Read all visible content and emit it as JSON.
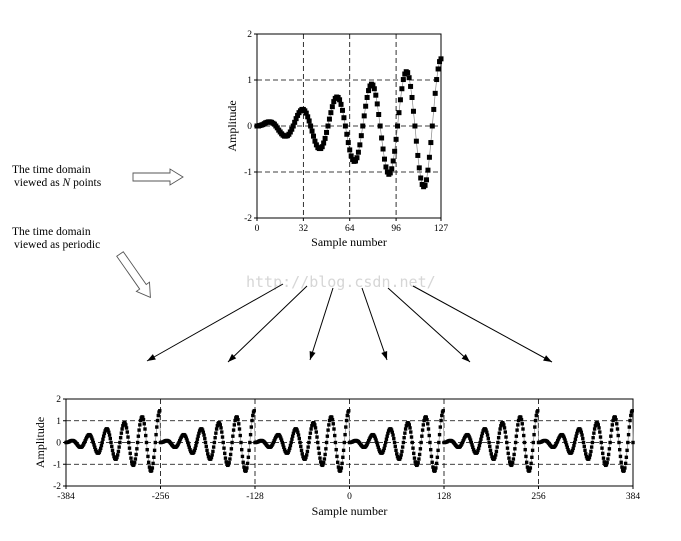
{
  "annotations": {
    "n_points_line1": "The time domain",
    "n_points_line2_prefix": "viewed as ",
    "n_points_line2_var": "N",
    "n_points_line2_suffix": " points",
    "periodic_line1": "The time domain",
    "periodic_line2": "viewed as periodic"
  },
  "watermark": "http://blog.csdn.net/",
  "chart_data": [
    {
      "type": "scatter",
      "xlabel": "Sample number",
      "ylabel": "Amplitude",
      "xlim": [
        0,
        127
      ],
      "ylim": [
        -2,
        2
      ],
      "xticks": [
        "0",
        "32",
        "64",
        "96",
        "127"
      ],
      "yticks": [
        "2",
        "1",
        "0",
        "-1",
        "-2"
      ],
      "grid": "dashed",
      "marker": "square",
      "color": "#000000",
      "x_start": 0,
      "values": [
        0,
        0,
        0.01,
        0.02,
        0.03,
        0.05,
        0.07,
        0.08,
        0.09,
        0.09,
        0.08,
        0.06,
        0.04,
        0,
        -0.04,
        -0.09,
        -0.13,
        -0.17,
        -0.2,
        -0.22,
        -0.22,
        -0.21,
        -0.18,
        -0.13,
        -0.07,
        0,
        0.08,
        0.16,
        0.23,
        0.29,
        0.33,
        0.36,
        0.36,
        0.33,
        0.28,
        0.2,
        0.11,
        0,
        -0.11,
        -0.22,
        -0.33,
        -0.41,
        -0.47,
        -0.49,
        -0.49,
        -0.45,
        -0.37,
        -0.27,
        -0.14,
        0,
        0.15,
        0.29,
        0.42,
        0.53,
        0.6,
        0.63,
        0.62,
        0.57,
        0.47,
        0.34,
        0.18,
        0,
        -0.18,
        -0.36,
        -0.52,
        -0.65,
        -0.73,
        -0.77,
        -0.76,
        -0.69,
        -0.57,
        -0.41,
        -0.21,
        0,
        0.22,
        0.43,
        0.62,
        0.77,
        0.87,
        0.91,
        0.89,
        0.81,
        0.67,
        0.48,
        0.25,
        0,
        -0.26,
        -0.5,
        -0.72,
        -0.89,
        -1.0,
        -1.05,
        -1.02,
        -0.93,
        -0.76,
        -0.55,
        -0.29,
        0,
        0.29,
        0.57,
        0.81,
        1.01,
        1.13,
        1.18,
        1.16,
        1.05,
        0.86,
        0.62,
        0.32,
        0,
        -0.33,
        -0.64,
        -0.91,
        -1.13,
        -1.27,
        -1.32,
        -1.29,
        -1.17,
        -0.96,
        -0.68,
        -0.36,
        0,
        0.36,
        0.71,
        1.01,
        1.24,
        1.4,
        1.46
      ]
    },
    {
      "type": "scatter",
      "xlabel": "Sample number",
      "ylabel": "Amplitude",
      "xlim": [
        -384,
        384
      ],
      "ylim": [
        -2,
        2
      ],
      "xticks": [
        "-384",
        "-256",
        "-128",
        "0",
        "128",
        "256",
        "384"
      ],
      "yticks": [
        "2",
        "1",
        "0",
        "-1",
        "-2"
      ],
      "grid": "dashed",
      "marker": "square",
      "color": "#000000",
      "period": 128,
      "x_start": -384,
      "x_end": 384,
      "period_values": [
        0,
        0,
        0.01,
        0.02,
        0.03,
        0.05,
        0.07,
        0.08,
        0.09,
        0.09,
        0.08,
        0.06,
        0.04,
        0,
        -0.04,
        -0.09,
        -0.13,
        -0.17,
        -0.2,
        -0.22,
        -0.22,
        -0.21,
        -0.18,
        -0.13,
        -0.07,
        0,
        0.08,
        0.16,
        0.23,
        0.29,
        0.33,
        0.36,
        0.36,
        0.33,
        0.28,
        0.2,
        0.11,
        0,
        -0.11,
        -0.22,
        -0.33,
        -0.41,
        -0.47,
        -0.49,
        -0.49,
        -0.45,
        -0.37,
        -0.27,
        -0.14,
        0,
        0.15,
        0.29,
        0.42,
        0.53,
        0.6,
        0.63,
        0.62,
        0.57,
        0.47,
        0.34,
        0.18,
        0,
        -0.18,
        -0.36,
        -0.52,
        -0.65,
        -0.73,
        -0.77,
        -0.76,
        -0.69,
        -0.57,
        -0.41,
        -0.21,
        0,
        0.22,
        0.43,
        0.62,
        0.77,
        0.87,
        0.91,
        0.89,
        0.81,
        0.67,
        0.48,
        0.25,
        0,
        -0.26,
        -0.5,
        -0.72,
        -0.89,
        -1.0,
        -1.05,
        -1.02,
        -0.93,
        -0.76,
        -0.55,
        -0.29,
        0,
        0.29,
        0.57,
        0.81,
        1.01,
        1.13,
        1.18,
        1.16,
        1.05,
        0.86,
        0.62,
        0.32,
        0,
        -0.33,
        -0.64,
        -0.91,
        -1.13,
        -1.27,
        -1.32,
        -1.29,
        -1.17,
        -0.96,
        -0.68,
        -0.36,
        0,
        0.36,
        0.71,
        1.01,
        1.24,
        1.4,
        1.46
      ]
    }
  ]
}
